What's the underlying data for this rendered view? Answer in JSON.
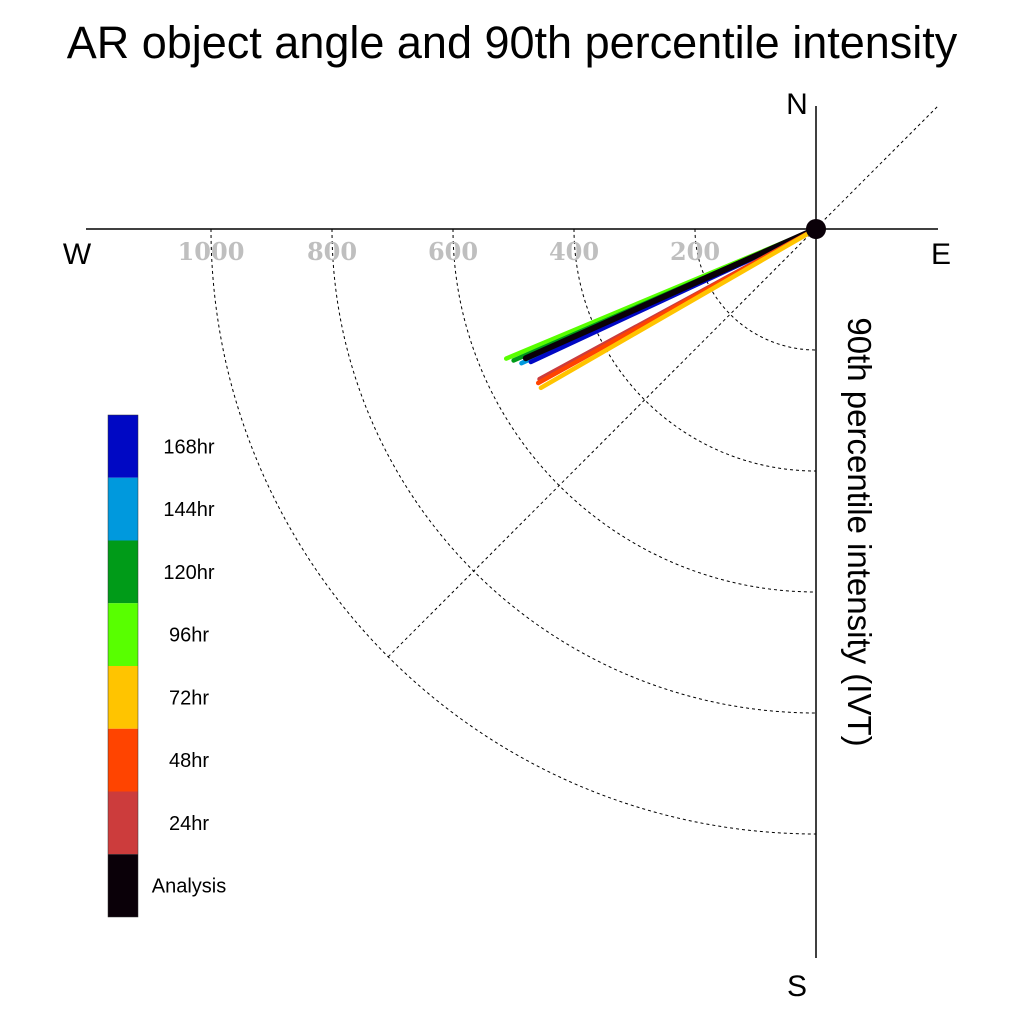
{
  "chart_data": {
    "type": "polar-vector",
    "title": "AR object angle and 90th percentile intensity",
    "axis_label": "90th percentile intensity (IVT)",
    "compass": {
      "north": "N",
      "south": "S",
      "east": "E",
      "west": "W"
    },
    "radial_ticks": [
      "200",
      "400",
      "600",
      "800",
      "1000"
    ],
    "radial_tick_values": [
      200,
      400,
      600,
      800,
      1000
    ],
    "radial_max": 1200,
    "grid": true,
    "legend_position": "left",
    "legend": [
      {
        "label": "168hr",
        "color": "#0008c4"
      },
      {
        "label": "144hr",
        "color": "#0099dd"
      },
      {
        "label": "120hr",
        "color": "#009b18"
      },
      {
        "label": "96hr",
        "color": "#58ff00"
      },
      {
        "label": "72hr",
        "color": "#ffc400"
      },
      {
        "label": "48hr",
        "color": "#ff4400"
      },
      {
        "label": "24hr",
        "color": "#cc3c3c"
      },
      {
        "label": "Analysis",
        "color": "#0a0008"
      }
    ],
    "series": [
      {
        "name": "96hr",
        "direction_deg": 247.3,
        "intensity": 555,
        "color": "#58ff00"
      },
      {
        "name": "120hr",
        "direction_deg": 246.5,
        "intensity": 545,
        "color": "#009b18"
      },
      {
        "name": "144hr",
        "direction_deg": 245.5,
        "intensity": 535,
        "color": "#0099dd"
      },
      {
        "name": "168hr",
        "direction_deg": 245.0,
        "intensity": 520,
        "color": "#0008c4"
      },
      {
        "name": "Analysis",
        "direction_deg": 246.0,
        "intensity": 525,
        "color": "#0a0008"
      },
      {
        "name": "24hr",
        "direction_deg": 241.5,
        "intensity": 520,
        "color": "#cc3c3c"
      },
      {
        "name": "48hr",
        "direction_deg": 241.0,
        "intensity": 525,
        "color": "#ff4400"
      },
      {
        "name": "72hr",
        "direction_deg": 240.0,
        "intensity": 525,
        "color": "#ffc400"
      }
    ]
  }
}
